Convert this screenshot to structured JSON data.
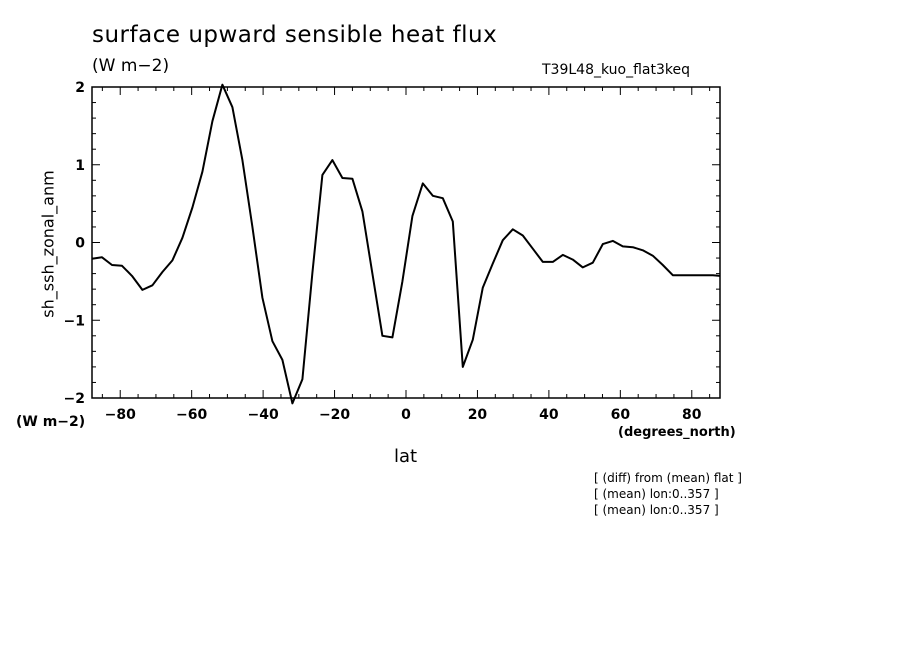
{
  "title": "surface upward sensible heat flux",
  "units": "(W m−2)",
  "run_name": "T39L48_kuo_flat3keq",
  "y_units": "(W m−2)",
  "x_units": "(degrees_north)",
  "notes": [
    "[ (diff) from (mean) flat ]",
    "[ (mean) lon:0..357 ]",
    "[ (mean) lon:0..357 ]"
  ],
  "chart_data": {
    "type": "line",
    "title": "surface upward sensible heat flux",
    "xlabel": "lat",
    "ylabel": "sh_ssh_zonal_anm",
    "xlim": [
      -87.9,
      87.9
    ],
    "ylim": [
      -2,
      2
    ],
    "x_ticks": [
      -80,
      -60,
      -40,
      -20,
      0,
      20,
      40,
      60,
      80
    ],
    "x_tick_labels": [
      "−80",
      "−60",
      "−40",
      "−20",
      "0",
      "20",
      "40",
      "60",
      "80"
    ],
    "y_ticks": [
      -2,
      -1,
      0,
      1,
      2
    ],
    "y_tick_labels": [
      "−2",
      "−1",
      "0",
      "1",
      "2"
    ],
    "grid": false,
    "series": [
      {
        "x": [
          -87.9,
          -85.1,
          -82.3,
          -79.5,
          -76.7,
          -73.8,
          -71.0,
          -68.2,
          -65.4,
          -62.6,
          -59.8,
          -57.0,
          -54.2,
          -51.4,
          -48.6,
          -45.8,
          -43.0,
          -40.2,
          -37.4,
          -34.6,
          -31.8,
          -29.0,
          -26.2,
          -23.4,
          -20.6,
          -17.8,
          -15.0,
          -12.2,
          -9.4,
          -6.6,
          -3.8,
          -1.0,
          1.8,
          4.7,
          7.5,
          10.3,
          13.1,
          15.9,
          18.7,
          21.5,
          24.3,
          27.1,
          29.9,
          32.7,
          35.5,
          38.3,
          41.1,
          43.9,
          46.7,
          49.5,
          52.3,
          55.1,
          57.9,
          60.7,
          63.5,
          66.3,
          69.1,
          71.9,
          74.7,
          77.5,
          80.3,
          83.1,
          85.9,
          87.9
        ],
        "values": [
          -0.21,
          -0.19,
          -0.29,
          -0.3,
          -0.43,
          -0.61,
          -0.55,
          -0.38,
          -0.23,
          0.06,
          0.45,
          0.91,
          1.56,
          2.03,
          1.74,
          1.06,
          0.2,
          -0.71,
          -1.27,
          -1.51,
          -2.07,
          -1.76,
          -0.39,
          0.87,
          1.06,
          0.83,
          0.82,
          0.4,
          -0.4,
          -1.2,
          -1.22,
          -0.5,
          0.34,
          0.76,
          0.6,
          0.57,
          0.27,
          -1.6,
          -1.25,
          -0.58,
          -0.27,
          0.03,
          0.17,
          0.09,
          -0.08,
          -0.25,
          -0.25,
          -0.16,
          -0.22,
          -0.32,
          -0.26,
          -0.02,
          0.02,
          -0.05,
          -0.06,
          -0.1,
          -0.17,
          -0.29,
          -0.42,
          -0.42,
          -0.42,
          -0.42,
          -0.42,
          -0.43
        ]
      }
    ]
  }
}
